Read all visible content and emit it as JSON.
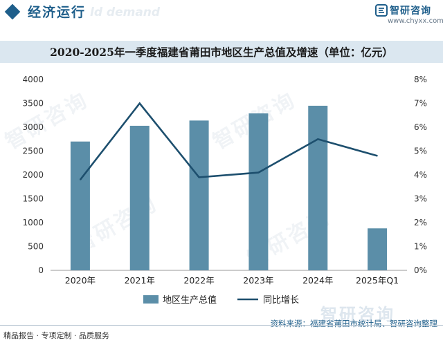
{
  "header": {
    "title": "经济运行",
    "ghost_text": "ld demand",
    "brand_name": "智研咨询",
    "brand_url": "www.chyxx.com"
  },
  "chart_title": "2020-2025年一季度福建省莆田市地区生产总值及增速（单位：亿元）",
  "chart_data": {
    "type": "bar+line",
    "categories": [
      "2020年",
      "2021年",
      "2022年",
      "2023年",
      "2024年",
      "2025年Q1"
    ],
    "series": [
      {
        "name": "地区生产总值",
        "type": "bar",
        "axis": "left",
        "color": "#5b8ea8",
        "values": [
          2700,
          3030,
          3140,
          3290,
          3450,
          880
        ]
      },
      {
        "name": "同比增长",
        "type": "line",
        "axis": "right",
        "color": "#1d4f6e",
        "values": [
          3.8,
          7.0,
          3.9,
          4.1,
          5.5,
          4.8
        ]
      }
    ],
    "left_axis": {
      "ylim": [
        0,
        4000
      ],
      "ticks": [
        "0",
        "500",
        "1000",
        "1500",
        "2000",
        "2500",
        "3000",
        "3500",
        "4000"
      ]
    },
    "right_axis": {
      "ylim": [
        0,
        8
      ],
      "ticks": [
        "0%",
        "1%",
        "2%",
        "3%",
        "4%",
        "5%",
        "6%",
        "7%",
        "8%"
      ]
    },
    "legend_position": "bottom",
    "grid": false
  },
  "watermark_text": "智研咨询",
  "footer": {
    "tagline": "精品报告 · 专项定制 · 品质服务",
    "logo_text": "智研咨询",
    "source": "资料来源：福建省莆田市统计局、智研咨询整理"
  }
}
